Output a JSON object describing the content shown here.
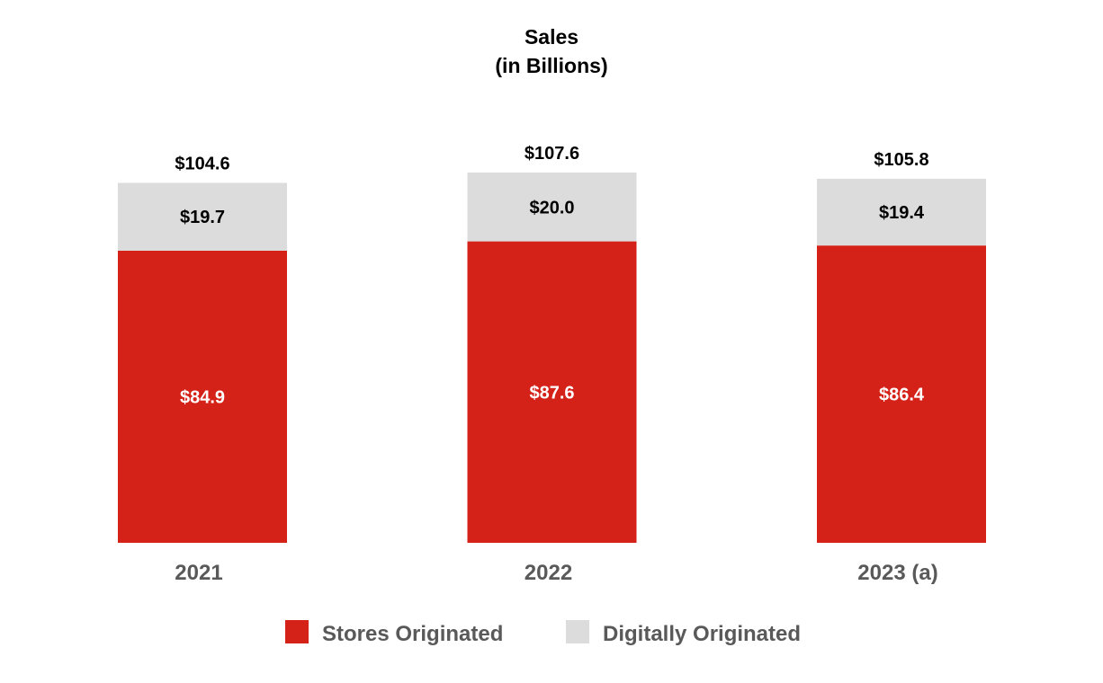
{
  "colors": {
    "stores": "#d52219",
    "digital": "#dcdcdc",
    "category_text": "#595959"
  },
  "chart_data": {
    "type": "bar",
    "stacked": true,
    "title": "Sales",
    "subtitle": "(in Billions)",
    "categories": [
      "2021",
      "2022",
      "2023 (a)"
    ],
    "series": [
      {
        "name": "Stores Originated",
        "values": [
          84.9,
          87.6,
          86.4
        ],
        "labels": [
          "$84.9",
          "$87.6",
          "$86.4"
        ]
      },
      {
        "name": "Digitally Originated",
        "values": [
          19.7,
          20.0,
          19.4
        ],
        "labels": [
          "$19.7",
          "$20.0",
          "$19.4"
        ]
      }
    ],
    "totals": [
      104.6,
      107.6,
      105.8
    ],
    "total_labels": [
      "$104.6",
      "$107.6",
      "$105.8"
    ],
    "xlabel": "",
    "ylabel": "",
    "ylim": [
      0,
      107.6
    ],
    "grid": false,
    "legend": "bottom"
  }
}
